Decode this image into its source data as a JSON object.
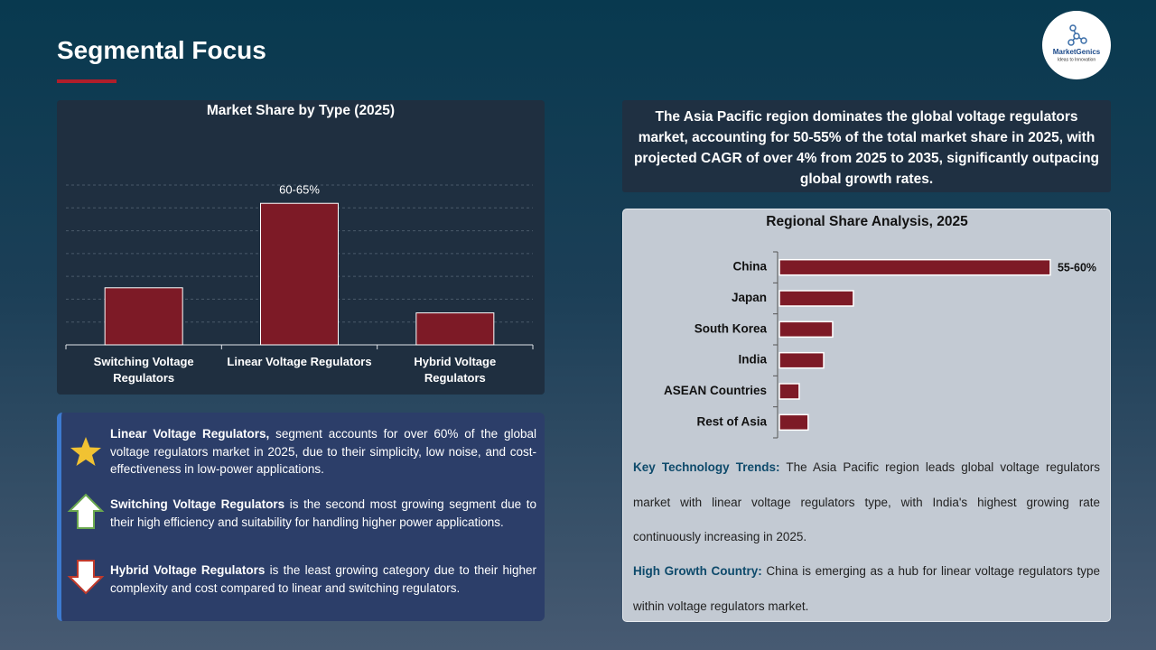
{
  "header": {
    "title": "Segmental Focus"
  },
  "logo": {
    "name": "MarketGenics",
    "tagline": "Ideas to Innovation"
  },
  "summary": "The Asia Pacific region dominates the global voltage regulators market, accounting for 50-55% of the total market share in 2025, with projected CAGR of over 4% from 2025 to 2035, significantly outpacing global growth rates.",
  "notes": [
    {
      "lead": "Linear Voltage Regulators,",
      "text": "segment accounts for over 60% of the global voltage regulators market in 2025, due to their simplicity, low noise, and cost-effectiveness in low-power applications."
    },
    {
      "lead": "Switching Voltage Regulators",
      "text": "is the second most growing segment due to their high efficiency and suitability for handling higher power applications."
    },
    {
      "lead": "Hybrid Voltage Regulators",
      "text": "is the least growing category due to their higher complexity and cost compared to linear and switching regulators."
    }
  ],
  "insights": [
    {
      "label": "Key Technology Trends:",
      "text": "The Asia Pacific region leads global voltage regulators market with linear voltage regulators type, with India's highest growing rate continuously increasing in 2025."
    },
    {
      "label": "High Growth Country:",
      "text": "China is emerging as a hub for linear voltage regulators type within voltage regulators market."
    }
  ],
  "chart_data": [
    {
      "type": "bar",
      "title": "Market Share by Type (2025)",
      "categories": [
        "Switching Voltage Regulators",
        "Linear Voltage Regulators",
        "Hybrid Voltage Regulators"
      ],
      "values": [
        25,
        62,
        14
      ],
      "value_labels": [
        null,
        "60-65%",
        null
      ],
      "color": "#7d1a26",
      "ylim": [
        0,
        70
      ],
      "yticks": [
        10,
        20,
        30,
        40,
        50,
        60,
        70
      ],
      "grid": true
    },
    {
      "type": "hbar",
      "title": "Regional Share Analysis, 2025",
      "categories": [
        "China",
        "Japan",
        "South Korea",
        "India",
        "ASEAN Countries",
        "Rest of Asia"
      ],
      "values": [
        57.5,
        15.7,
        11.3,
        9.4,
        4.2,
        6.1
      ],
      "value_labels": [
        "55-60%",
        null,
        null,
        null,
        null,
        null
      ],
      "color": "#7d1a26",
      "xlim": [
        0,
        60
      ],
      "grid": false
    }
  ]
}
